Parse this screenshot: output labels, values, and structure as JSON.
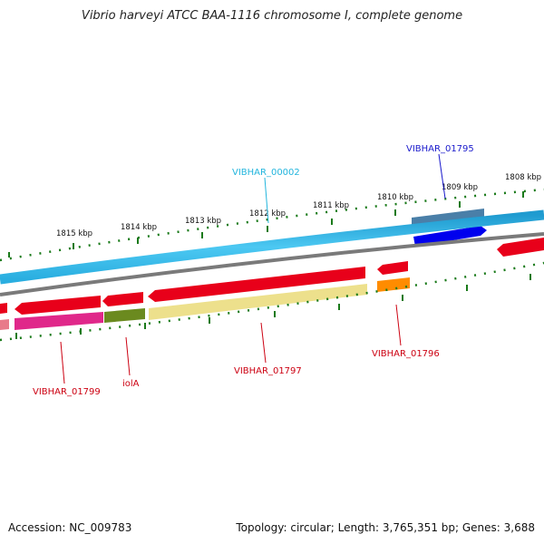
{
  "title": "Vibrio harveyi ATCC BAA-1116 chromosome I, complete genome",
  "footer": {
    "accession": "Accession: NC_009783",
    "summary": "Topology: circular; Length: 3,765,351 bp; Genes: 3,688"
  },
  "scale_ticks": [
    "1815 kbp",
    "1814 kbp",
    "1813 kbp",
    "1812 kbp",
    "1811 kbp",
    "1810 kbp",
    "1809 kbp",
    "1808 kbp"
  ],
  "gene_labels": {
    "VIBHAR_00002": "VIBHAR_00002",
    "VIBHAR_01795": "VIBHAR_01795",
    "VIBHAR_01796": "VIBHAR_01796",
    "VIBHAR_01797": "VIBHAR_01797",
    "VIBHAR_01799": "VIBHAR_01799",
    "iolA": "iolA"
  },
  "colors": {
    "backbone": "#35b8e8",
    "backbone_inner": "#7a7a7a",
    "gene_red": "#e8001a",
    "label_red": "#cc0011",
    "label_cyan": "#22b5dd",
    "label_blue": "#1a1acc",
    "tick_green": "#1a7a1a",
    "gene_blue": "#0000ee",
    "gene_steel": "#4a7fa8",
    "gene_magenta": "#e0288a",
    "gene_olive": "#6b8a1f",
    "gene_khaki": "#ede08c",
    "gene_orange": "#ff8c00",
    "gene_pink": "#e87a8a"
  }
}
